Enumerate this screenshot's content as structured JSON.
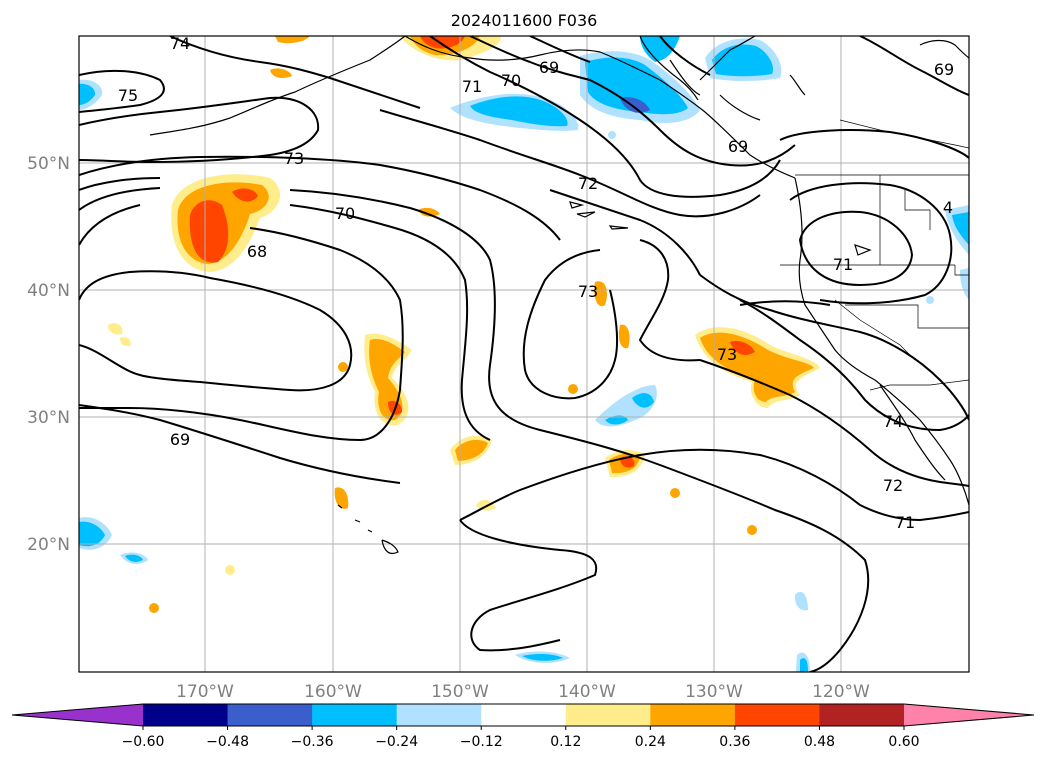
{
  "title": "2024011600 F036",
  "map": {
    "lon_labels": [
      "170°W",
      "160°W",
      "150°W",
      "140°W",
      "130°W",
      "120°W"
    ],
    "lat_labels": [
      "50°N",
      "40°N",
      "30°N",
      "20°N"
    ]
  },
  "contour_labels": {
    "l74a": "74",
    "l75": "75",
    "l73a": "73",
    "l70a": "70",
    "l68": "68",
    "l69a": "69",
    "l71a": "71",
    "l70b": "70",
    "l69b": "69",
    "l69c": "69",
    "l72a": "72",
    "l73b": "73",
    "l73c": "73",
    "l71b": "71",
    "l74b": "74",
    "l72b": "72",
    "l71c": "71",
    "l69d": "69",
    "l4": "4"
  },
  "colorbar": {
    "ticks": [
      "−0.60",
      "−0.48",
      "−0.36",
      "−0.24",
      "−0.12",
      "0.12",
      "0.24",
      "0.36",
      "0.48",
      "0.60"
    ],
    "colors": [
      "#9932cc",
      "#00008b",
      "#3a5fcd",
      "#00bfff",
      "#b0e2ff",
      "#ffffff",
      "#ffec8b",
      "#ffa500",
      "#ff4500",
      "#b22222",
      "#ff82ab"
    ]
  }
}
